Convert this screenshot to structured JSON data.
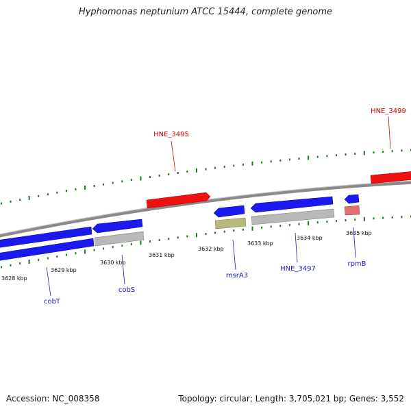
{
  "title": "Hyphomonas neptunium ATCC 15444, complete genome",
  "footer": {
    "accession": "Accession: NC_008358",
    "summary": "Topology: circular; Length: 3,705,021 bp; Genes: 3,552"
  },
  "colors": {
    "backbone": "#8a8a8a",
    "tick": "#1a7a1a",
    "forward_gene": "#ee1111",
    "reverse_gene": "#1a1aee",
    "rna_gene": "#e07070",
    "pseudo_gene": "#b8b8b8",
    "other_gene": "#b8b878",
    "label_red": "#cc0000",
    "label_blue": "#1a1ab0"
  },
  "scale_labels": [
    "3628 kbp",
    "3629 kbp",
    "3630 kbp",
    "3631 kbp",
    "3632 kbp",
    "3633 kbp",
    "3634 kbp",
    "3635 kbp"
  ],
  "gene_labels": [
    {
      "text": "HNE_3495",
      "strand": "forward"
    },
    {
      "text": "HNE_3499",
      "strand": "forward"
    },
    {
      "text": "cobT",
      "strand": "reverse"
    },
    {
      "text": "cobS",
      "strand": "reverse"
    },
    {
      "text": "msrA3",
      "strand": "reverse"
    },
    {
      "text": "HNE_3497",
      "strand": "reverse"
    },
    {
      "text": "rpmB",
      "strand": "reverse"
    }
  ]
}
